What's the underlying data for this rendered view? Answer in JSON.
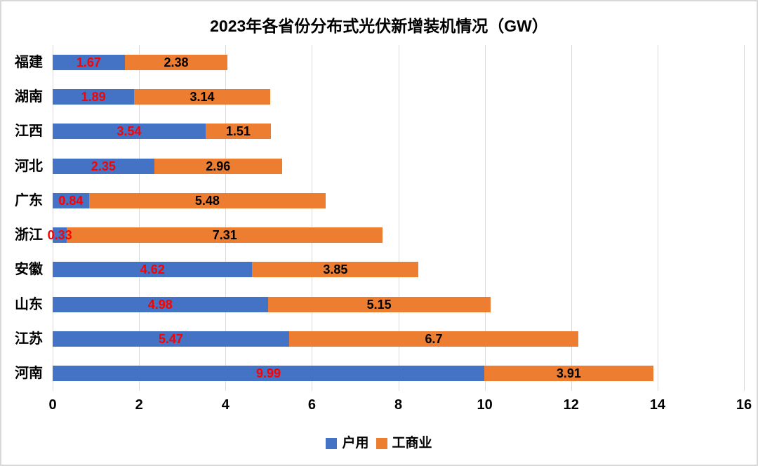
{
  "chart_data": {
    "type": "bar",
    "orientation": "horizontal",
    "stacked": true,
    "title": "2023年各省份分布式光伏新增装机情况（GW）",
    "categories": [
      "福建",
      "湖南",
      "江西",
      "河北",
      "广东",
      "浙江",
      "安徽",
      "山东",
      "江苏",
      "河南"
    ],
    "series": [
      {
        "name": "户用",
        "color": "#4472C4",
        "label_color": "#FF0000",
        "values": [
          1.67,
          1.89,
          3.54,
          2.35,
          0.84,
          0.33,
          4.62,
          4.98,
          5.47,
          9.99
        ]
      },
      {
        "name": "工商业",
        "color": "#ED7D31",
        "label_color": "#000000",
        "values": [
          2.38,
          3.14,
          1.51,
          2.96,
          5.48,
          7.31,
          3.85,
          5.15,
          6.7,
          3.91
        ]
      }
    ],
    "x_axis": {
      "min": 0,
      "max": 16,
      "tick_step": 2,
      "tick_labels": [
        "0",
        "2",
        "4",
        "6",
        "8",
        "10",
        "12",
        "14",
        "16"
      ]
    },
    "legend": {
      "position": "bottom",
      "items": [
        "户用",
        "工商业"
      ]
    },
    "grid": true,
    "gridline_color": "#DADADA",
    "background": "#FFFFFF",
    "border_color": "#D9D9D9"
  }
}
